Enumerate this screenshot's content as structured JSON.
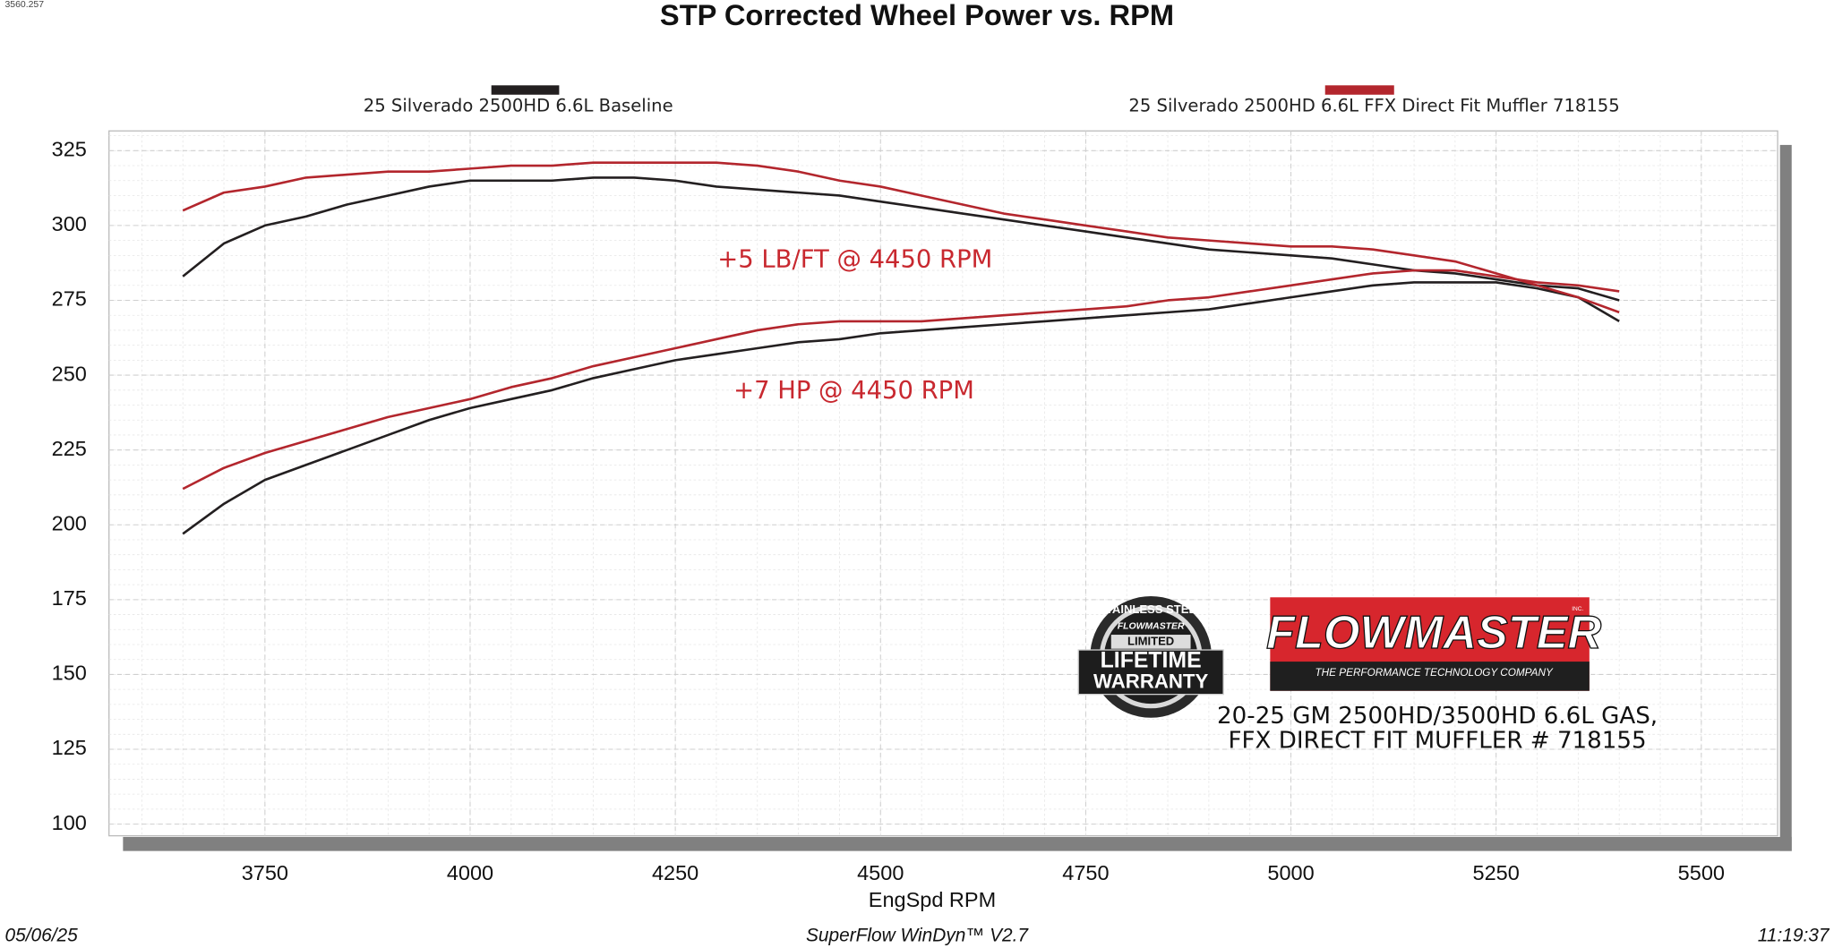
{
  "chart_data": {
    "type": "line",
    "title": "STP Corrected Wheel Power vs. RPM",
    "corner_label": "3560.257",
    "x_label": "EngSpd  RPM",
    "footer_left": "05/06/25",
    "footer_center": "SuperFlow WinDyn™ V2.7",
    "footer_right": "11:19:37",
    "annotations": [
      "+5 LB/FT @ 4450 RPM",
      "+7 HP @ 4450 RPM"
    ],
    "product_text": [
      "20-25 GM 2500HD/3500HD 6.6L GAS,",
      "FFX DIRECT FIT MUFFLER # 718155"
    ],
    "logo": {
      "brand": "FLOWMASTER",
      "tagline": "THE PERFORMANCE TECHNOLOGY COMPANY",
      "suffix": "INC."
    },
    "badge": [
      "STAINLESS STEEL",
      "FLOWMASTER",
      "LIMITED",
      "LIFETIME",
      "WARRANTY"
    ],
    "x": [
      3650,
      3700,
      3750,
      3800,
      3850,
      3900,
      3950,
      4000,
      4050,
      4100,
      4150,
      4200,
      4250,
      4300,
      4350,
      4400,
      4450,
      4500,
      4550,
      4600,
      4650,
      4700,
      4750,
      4800,
      4850,
      4900,
      4950,
      5000,
      5050,
      5100,
      5150,
      5200,
      5250,
      5300,
      5350,
      5400
    ],
    "series": [
      {
        "name": "25 Silverado 2500HD 6.6L Baseline",
        "color": "#231f20",
        "torque": [
          283,
          294,
          300,
          303,
          307,
          310,
          313,
          315,
          315,
          315,
          316,
          316,
          315,
          313,
          312,
          311,
          310,
          308,
          306,
          304,
          302,
          300,
          298,
          296,
          294,
          292,
          291,
          290,
          289,
          287,
          285,
          284,
          282,
          280,
          279,
          275
        ],
        "power": [
          197,
          207,
          215,
          220,
          225,
          230,
          235,
          239,
          242,
          245,
          249,
          252,
          255,
          257,
          259,
          261,
          262,
          264,
          265,
          266,
          267,
          268,
          269,
          270,
          271,
          272,
          274,
          276,
          278,
          280,
          281,
          281,
          281,
          279,
          276,
          268
        ]
      },
      {
        "name": "25 Silverado 2500HD 6.6L FFX Direct Fit Muffler 718155",
        "color": "#b3262d",
        "torque": [
          305,
          311,
          313,
          316,
          317,
          318,
          318,
          319,
          320,
          320,
          321,
          321,
          321,
          321,
          320,
          318,
          315,
          313,
          310,
          307,
          304,
          302,
          300,
          298,
          296,
          295,
          294,
          293,
          293,
          292,
          290,
          288,
          284,
          280,
          276,
          271
        ],
        "power": [
          212,
          219,
          224,
          228,
          232,
          236,
          239,
          242,
          246,
          249,
          253,
          256,
          259,
          262,
          265,
          267,
          268,
          268,
          268,
          269,
          270,
          271,
          272,
          273,
          275,
          276,
          278,
          280,
          282,
          284,
          285,
          285,
          283,
          281,
          280,
          278
        ]
      }
    ],
    "xlim": [
      3560,
      5593
    ],
    "ylim": [
      96.1,
      331.6
    ],
    "xticks": [
      3750,
      4000,
      4250,
      4500,
      4750,
      5000,
      5250,
      5500
    ],
    "yticks": [
      100,
      125,
      150,
      175,
      200,
      225,
      250,
      275,
      300,
      325
    ],
    "grid": true
  }
}
